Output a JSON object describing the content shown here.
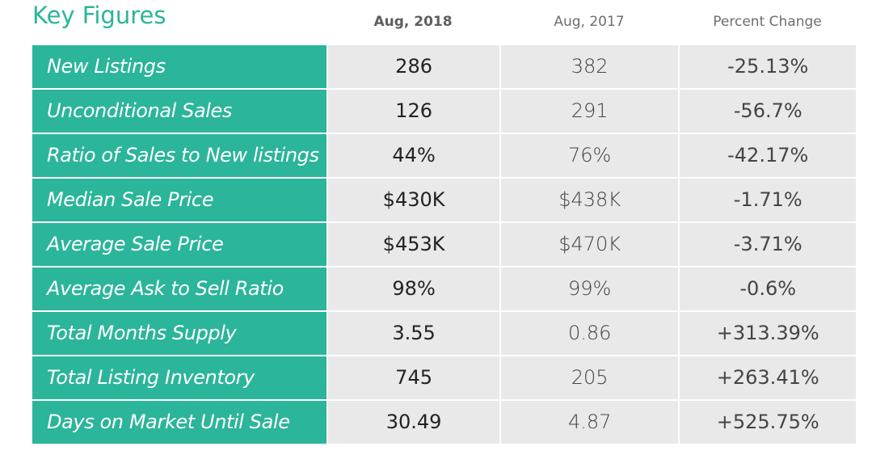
{
  "title": "Key Figures",
  "columns": {
    "current": "Aug, 2018",
    "previous": "Aug, 2017",
    "change": "Percent Change"
  },
  "rows": [
    {
      "label": "New Listings",
      "current": "286",
      "previous": "382",
      "change": "-25.13%"
    },
    {
      "label": "Unconditional Sales",
      "current": "126",
      "previous": "291",
      "change": "-56.7%"
    },
    {
      "label": "Ratio of Sales to New listings",
      "current": "44%",
      "previous": "76%",
      "change": "-42.17%"
    },
    {
      "label": "Median Sale Price",
      "current": "$430K",
      "previous": "$438K",
      "change": "-1.71%"
    },
    {
      "label": "Average Sale Price",
      "current": "$453K",
      "previous": "$470K",
      "change": "-3.71%"
    },
    {
      "label": "Average Ask to Sell Ratio",
      "current": "98%",
      "previous": "99%",
      "change": "-0.6%"
    },
    {
      "label": "Total Months Supply",
      "current": "3.55",
      "previous": "0.86",
      "change": "+313.39%"
    },
    {
      "label": "Total Listing Inventory",
      "current": "745",
      "previous": "205",
      "change": "+263.41%"
    },
    {
      "label": "Days on Market Until Sale",
      "current": "30.49",
      "previous": "4.87",
      "change": "+525.75%"
    }
  ],
  "colors": {
    "accent": "#2bb59a",
    "row_background": "#e9e9e9"
  }
}
